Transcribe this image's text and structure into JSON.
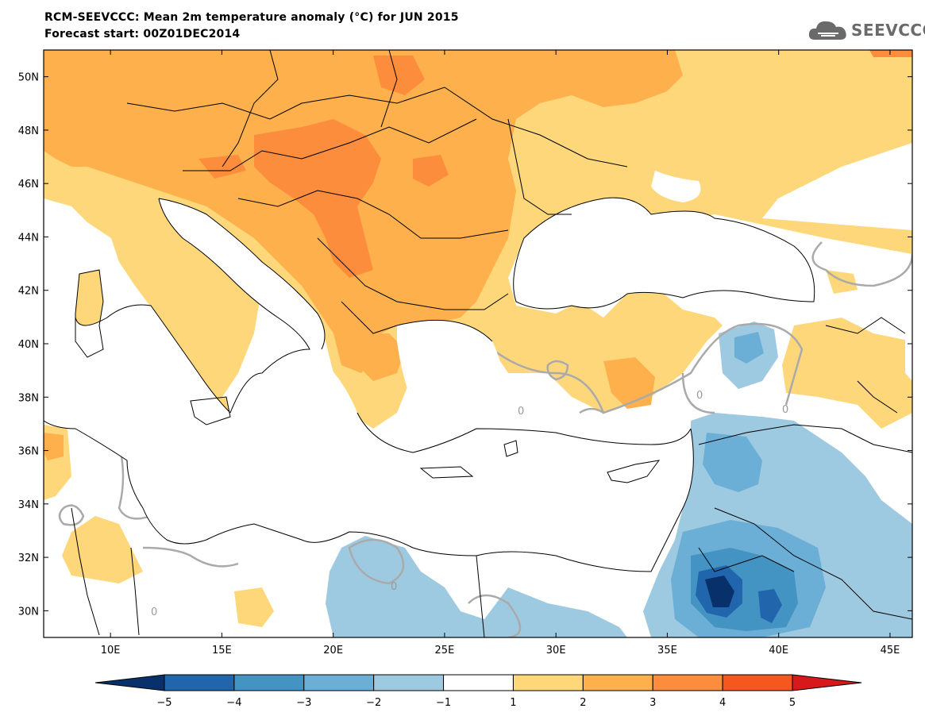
{
  "title": {
    "line1": "RCM-SEEVCCC: Mean 2m temperature anomaly (°C) for JUN 2015",
    "line2": "Forecast start: 00Z01DEC2014"
  },
  "logo": {
    "text": "SEEVCCC",
    "icon": "cloud-icon"
  },
  "map": {
    "lon_range": [
      7,
      46
    ],
    "lat_range": [
      29,
      51
    ],
    "lat_ticks": [
      "50N",
      "48N",
      "46N",
      "44N",
      "42N",
      "40N",
      "38N",
      "36N",
      "34N",
      "32N",
      "30N"
    ],
    "lon_ticks": [
      "10E",
      "15E",
      "20E",
      "25E",
      "30E",
      "35E",
      "40E",
      "45E"
    ],
    "contour_labels": [
      "0",
      "0",
      "0",
      "0",
      "0"
    ]
  },
  "colorbar": {
    "labels": [
      "−5",
      "−4",
      "−3",
      "−2",
      "−1",
      "1",
      "2",
      "3",
      "4",
      "5"
    ],
    "colors": [
      "#08306b",
      "#2166ac",
      "#4393c3",
      "#6baed6",
      "#9ecae1",
      "#ffffff",
      "#fdd77a",
      "#fdb04b",
      "#fc8d3c",
      "#f4581f",
      "#d7191c"
    ]
  }
}
